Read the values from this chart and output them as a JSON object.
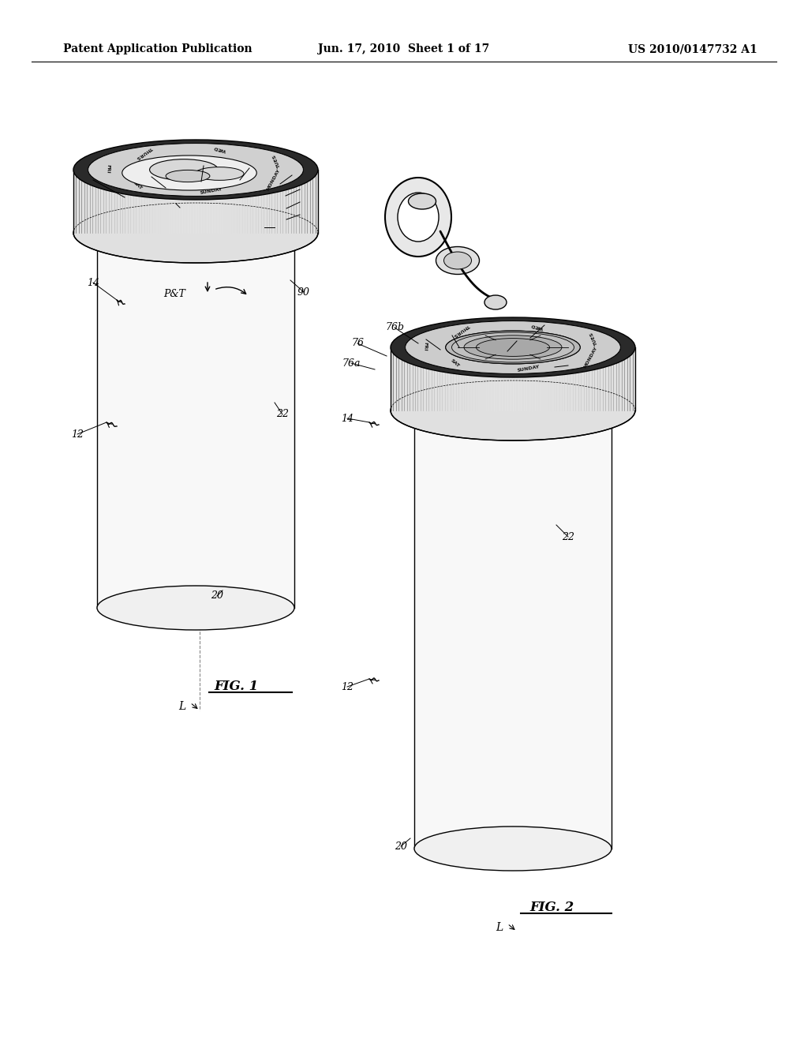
{
  "bg_color": "#ffffff",
  "line_color": "#000000",
  "header": {
    "left": "Patent Application Publication",
    "center": "Jun. 17, 2010  Sheet 1 of 17",
    "right": "US 2010/0147732 A1"
  }
}
